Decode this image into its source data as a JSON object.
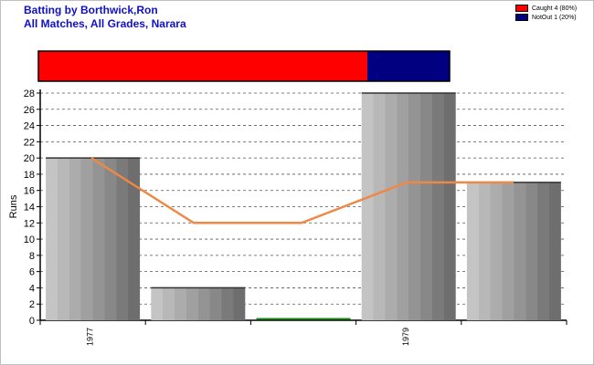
{
  "title_line1": "Batting by Borthwick,Ron",
  "title_line2": "All Matches, All Grades, Narara",
  "legend": [
    {
      "label": "Caught 4 (80%)",
      "color": "#ff0000"
    },
    {
      "label": "NotOut 1 (20%)",
      "color": "#000080"
    }
  ],
  "chart_data": {
    "type": "bar",
    "ylabel": "Runs",
    "ylim": [
      0,
      28
    ],
    "yticks": [
      0,
      2,
      4,
      6,
      8,
      10,
      12,
      14,
      16,
      18,
      20,
      22,
      24,
      26,
      28
    ],
    "grid": true,
    "x_tick_labels": [
      "1977",
      "",
      "",
      "1979",
      ""
    ],
    "values": [
      20,
      4,
      0,
      28,
      17
    ],
    "line_values": [
      20,
      12,
      12,
      17,
      17
    ],
    "line_color": "#ee8844",
    "bar_color": "#a0a0a0",
    "dismissal_bar": [
      {
        "name": "Caught",
        "value": 4,
        "percent": 80,
        "color": "#ff0000"
      },
      {
        "name": "NotOut",
        "value": 1,
        "percent": 20,
        "color": "#000080"
      }
    ]
  }
}
